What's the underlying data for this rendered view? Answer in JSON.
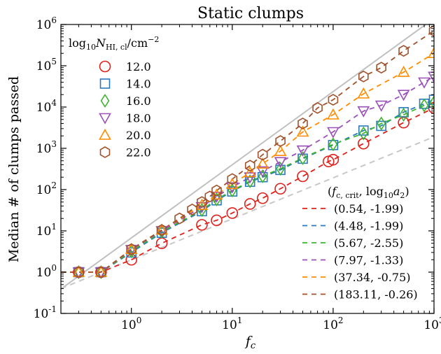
{
  "chart_data": {
    "type": "scatter",
    "title": "Static clumps",
    "xlabel": "f_c",
    "ylabel": "Median # of clumps passed",
    "x_scale": "log",
    "y_scale": "log",
    "xlim": [
      0.2,
      1000
    ],
    "ylim": [
      0.1,
      1000000
    ],
    "x_ticks": [
      {
        "value": 1,
        "label": "10^0"
      },
      {
        "value": 10,
        "label": "10^1"
      },
      {
        "value": 100,
        "label": "10^2"
      },
      {
        "value": 1000,
        "label": "10^3"
      }
    ],
    "y_ticks": [
      {
        "value": 0.1,
        "label": "10^-1"
      },
      {
        "value": 1,
        "label": "10^0"
      },
      {
        "value": 10,
        "label": "10^1"
      },
      {
        "value": 100,
        "label": "10^2"
      },
      {
        "value": 1000,
        "label": "10^3"
      },
      {
        "value": 10000,
        "label": "10^4"
      },
      {
        "value": 100000,
        "label": "10^5"
      },
      {
        "value": 1000000,
        "label": "10^6"
      }
    ],
    "legend_markers_title": "log10 N_HI,cl / cm^-2",
    "legend_markers_position": "top-left",
    "legend_fits_title": "(f_c,crit, log10 a2)",
    "legend_fits_position": "bottom-right",
    "series": [
      {
        "name": "12.0",
        "marker": "circle",
        "color": "#e0201a",
        "x": [
          0.3,
          0.5,
          1,
          2,
          5,
          7,
          10,
          15,
          20,
          30,
          50,
          90,
          100,
          200,
          500,
          1000
        ],
        "y": [
          1.0,
          1.0,
          2.0,
          5.0,
          14,
          18,
          27,
          45,
          62,
          105,
          210,
          480,
          530,
          1300,
          4200,
          9500
        ]
      },
      {
        "name": "14.0",
        "marker": "square",
        "color": "#2a7ac0",
        "x": [
          0.3,
          0.5,
          1,
          2,
          5,
          7,
          10,
          15,
          20,
          30,
          50,
          100,
          200,
          300,
          500,
          800,
          1000
        ],
        "y": [
          1.0,
          1.0,
          3.0,
          9.0,
          30,
          55,
          90,
          155,
          200,
          300,
          560,
          1200,
          2700,
          3500,
          7500,
          12000,
          15000
        ]
      },
      {
        "name": "16.0",
        "marker": "diamond",
        "color": "#3db52e",
        "x": [
          0.3,
          0.5,
          1,
          2,
          5,
          7,
          10,
          15,
          20,
          30,
          50,
          100,
          200,
          300,
          500,
          800,
          1000
        ],
        "y": [
          1.0,
          1.0,
          3.2,
          9.5,
          32,
          58,
          95,
          160,
          210,
          320,
          580,
          1250,
          2300,
          4000,
          6500,
          11000,
          13000
        ]
      },
      {
        "name": "18.0",
        "marker": "triangle-down",
        "color": "#9b50b8",
        "x": [
          0.3,
          0.5,
          1,
          2,
          5,
          7,
          10,
          15,
          20,
          30,
          50,
          100,
          200,
          300,
          500,
          800,
          1000
        ],
        "y": [
          1.0,
          1.0,
          3.5,
          10,
          38,
          68,
          115,
          200,
          280,
          470,
          900,
          2500,
          8000,
          11000,
          20000,
          40000,
          55000
        ]
      },
      {
        "name": "20.0",
        "marker": "triangle-up",
        "color": "#ff8c00",
        "x": [
          0.3,
          0.5,
          1,
          2,
          5,
          7,
          10,
          15,
          20,
          30,
          50,
          100,
          200,
          500,
          1000
        ],
        "y": [
          1.0,
          1.0,
          3.6,
          10.5,
          42,
          75,
          135,
          260,
          420,
          850,
          2500,
          6500,
          21000,
          70000,
          200000
        ]
      },
      {
        "name": "22.0",
        "marker": "hexagon",
        "color": "#a0522d",
        "x": [
          0.3,
          0.5,
          1,
          2,
          3,
          4,
          5,
          6,
          7,
          10,
          15,
          20,
          30,
          50,
          70,
          100,
          200,
          300,
          500,
          1000
        ],
        "y": [
          1.0,
          1.0,
          3.6,
          10.5,
          20,
          33,
          50,
          68,
          95,
          180,
          380,
          700,
          1500,
          4000,
          9500,
          15000,
          55000,
          90000,
          230000,
          700000
        ]
      }
    ],
    "fits": [
      {
        "label": "(0.54, -1.99)",
        "color": "#e0201a",
        "fc_crit": 0.54,
        "log10_a2": -1.99
      },
      {
        "label": "(4.48, -1.99)",
        "color": "#2a7ac0",
        "fc_crit": 4.48,
        "log10_a2": -1.99
      },
      {
        "label": "(5.67, -2.55)",
        "color": "#3db52e",
        "fc_crit": 5.67,
        "log10_a2": -2.55
      },
      {
        "label": "(7.97, -1.33)",
        "color": "#9b50b8",
        "fc_crit": 7.97,
        "log10_a2": -1.33
      },
      {
        "label": "(37.34, -0.75)",
        "color": "#ff8c00",
        "fc_crit": 37.34,
        "log10_a2": -0.75
      },
      {
        "label": "(183.11, -0.26)",
        "color": "#a0522d",
        "fc_crit": 183.11,
        "log10_a2": -0.26
      }
    ],
    "reference_lines": [
      {
        "style": "solid",
        "color": "#c0c0c0",
        "x": [
          0.2,
          1000
        ],
        "y": [
          0.39,
          1400000
        ]
      },
      {
        "style": "dashed",
        "color": "#c8c8c8",
        "x": [
          0.2,
          1000
        ],
        "y": [
          0.4,
          1900
        ]
      }
    ]
  }
}
